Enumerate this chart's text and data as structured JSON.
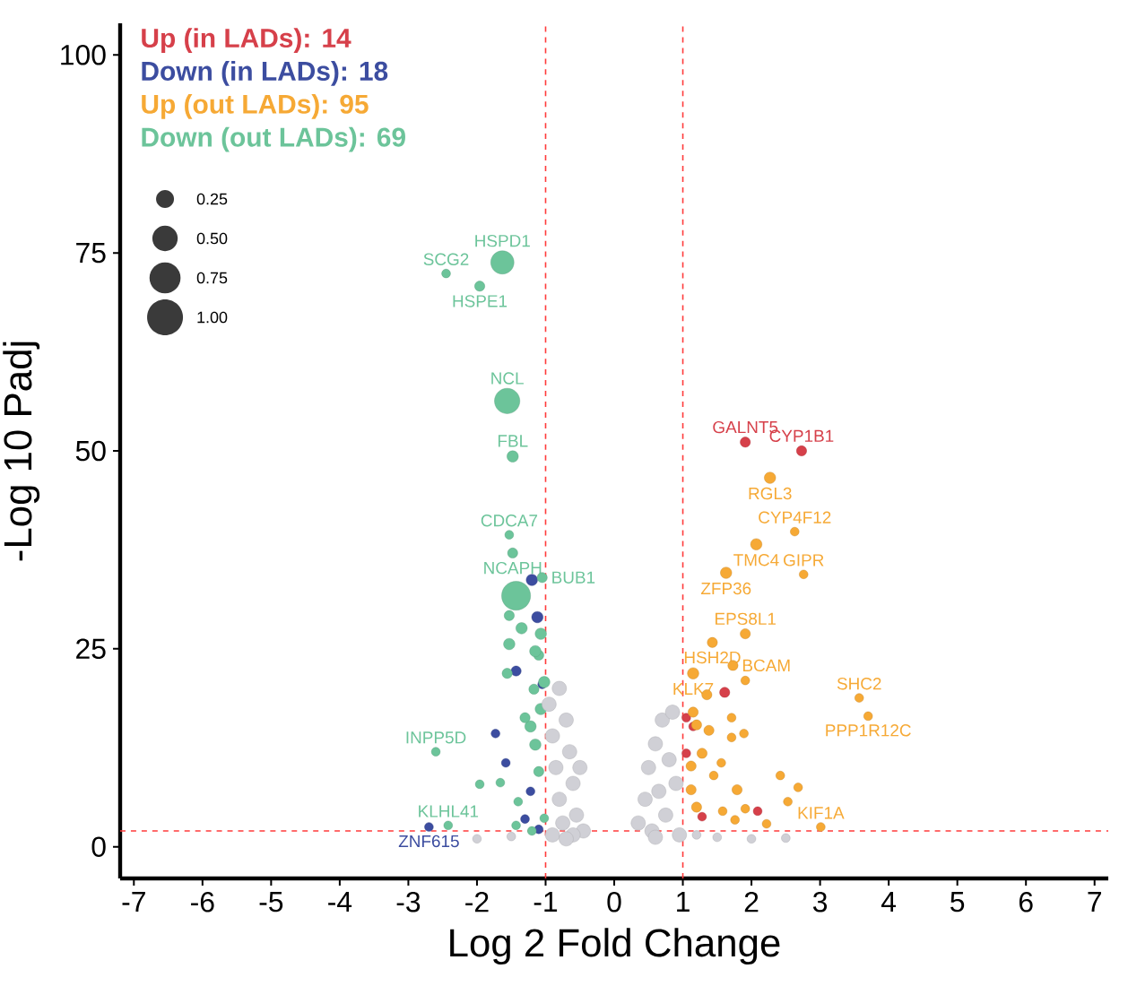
{
  "chart_data": {
    "type": "bubble",
    "xlabel": "Log 2 Fold Change",
    "ylabel": "-Log 10 Padj",
    "xlim": [
      -7.2,
      7.2
    ],
    "ylim": [
      -4,
      104
    ],
    "xticks": [
      -7,
      -6,
      -5,
      -4,
      -3,
      -2,
      -1,
      0,
      1,
      2,
      3,
      4,
      5,
      6,
      7
    ],
    "yticks": [
      0,
      25,
      50,
      75,
      100
    ],
    "legend": "top left",
    "marker": "circle",
    "size_legend": [
      {
        "value": 0.25,
        "label": "0.25"
      },
      {
        "value": 0.5,
        "label": "0.50"
      },
      {
        "value": 0.75,
        "label": "0.75"
      },
      {
        "value": 1.0,
        "label": "1.00"
      }
    ],
    "series": [
      {
        "name": "Up (in LADs): 14",
        "color": "#d6404a",
        "x": [
          1.91,
          2.73,
          1.61,
          2.09,
          1.05,
          1.15,
          1.28,
          1.05
        ],
        "values": [
          51.1,
          50.0,
          19.5,
          4.5,
          11.8,
          15.2,
          3.8,
          16.3
        ],
        "sizes": [
          0.08,
          0.08,
          0.08,
          0.06,
          0.06,
          0.06,
          0.06,
          0.06
        ]
      },
      {
        "name": "Down (in LADs): 18",
        "color": "#3c4da0",
        "x": [
          -1.2,
          -1.12,
          -1.43,
          -1.73,
          -1.58,
          -2.7,
          -1.22,
          -1.3,
          -1.1,
          -1.05
        ],
        "values": [
          33.7,
          29.0,
          22.2,
          14.3,
          10.6,
          2.5,
          7.0,
          3.5,
          2.2,
          20.5
        ],
        "sizes": [
          0.1,
          0.1,
          0.08,
          0.06,
          0.06,
          0.06,
          0.06,
          0.06,
          0.06,
          0.06
        ]
      },
      {
        "name": "Up (out LADs): 95",
        "color": "#f6a935",
        "x": [
          2.27,
          2.63,
          2.07,
          1.63,
          2.76,
          1.91,
          1.43,
          1.73,
          1.15,
          3.57,
          3.7,
          1.91,
          1.35,
          1.71,
          1.71,
          1.89,
          1.2,
          1.28,
          1.56,
          1.45,
          2.42,
          2.68,
          2.53,
          1.79,
          1.91,
          1.58,
          3.01,
          1.76,
          1.38,
          1.15,
          1.12,
          1.12,
          1.2,
          2.22
        ],
        "values": [
          46.6,
          39.8,
          38.2,
          34.6,
          34.4,
          26.9,
          25.8,
          22.9,
          21.9,
          18.8,
          16.5,
          21.0,
          19.2,
          16.3,
          13.8,
          14.3,
          15.4,
          11.8,
          10.6,
          9.0,
          9.0,
          7.5,
          5.7,
          7.2,
          4.8,
          4.5,
          2.5,
          3.4,
          14.7,
          17.0,
          10.2,
          7.2,
          5.0,
          2.9
        ],
        "sizes": [
          0.1,
          0.06,
          0.1,
          0.1,
          0.06,
          0.08,
          0.08,
          0.08,
          0.1,
          0.06,
          0.06,
          0.06,
          0.08,
          0.06,
          0.06,
          0.06,
          0.08,
          0.08,
          0.06,
          0.06,
          0.06,
          0.06,
          0.06,
          0.08,
          0.06,
          0.06,
          0.06,
          0.06,
          0.08,
          0.08,
          0.08,
          0.08,
          0.08,
          0.06
        ]
      },
      {
        "name": "Down (out LADs): 69",
        "color": "#6cc49a",
        "x": [
          -2.45,
          -1.63,
          -1.96,
          -1.56,
          -1.48,
          -1.53,
          -1.48,
          -1.43,
          -1.05,
          -1.53,
          -1.35,
          -1.07,
          -1.53,
          -1.1,
          -1.56,
          -1.15,
          -1.17,
          -2.6,
          -1.66,
          -1.96,
          -1.4,
          -2.42,
          -1.43,
          -1.2,
          -1.02,
          -1.07,
          -1.22,
          -1.15,
          -1.02,
          -1.3,
          -1.1
        ],
        "values": [
          72.4,
          73.8,
          70.8,
          56.3,
          49.3,
          39.4,
          37.1,
          31.7,
          34.0,
          29.2,
          27.6,
          26.9,
          25.6,
          24.2,
          21.9,
          24.7,
          19.9,
          12.0,
          8.1,
          7.9,
          5.7,
          2.7,
          2.7,
          2.0,
          3.6,
          17.4,
          15.2,
          12.9,
          20.8,
          16.3,
          9.5
        ],
        "sizes": [
          0.06,
          0.42,
          0.08,
          0.5,
          0.1,
          0.06,
          0.08,
          0.65,
          0.08,
          0.08,
          0.1,
          0.1,
          0.1,
          0.08,
          0.08,
          0.1,
          0.08,
          0.06,
          0.06,
          0.06,
          0.06,
          0.06,
          0.06,
          0.06,
          0.06,
          0.1,
          0.1,
          0.1,
          0.1,
          0.08,
          0.08
        ]
      },
      {
        "color": "#d0d0d6",
        "x": [
          -0.95,
          -0.9,
          -0.85,
          -0.8,
          -0.75,
          -0.7,
          -0.65,
          -0.6,
          -0.55,
          -0.5,
          -0.45,
          -0.9,
          -0.6,
          -0.8,
          -0.7,
          0.35,
          0.45,
          0.5,
          0.55,
          0.6,
          0.65,
          0.7,
          0.75,
          0.8,
          0.85,
          0.9,
          0.95,
          0.6,
          1.5,
          2.0,
          2.5,
          -2.0,
          -1.5,
          1.2
        ],
        "values": [
          18,
          14,
          10,
          6,
          3,
          16,
          12,
          8,
          4,
          10,
          2,
          1.5,
          1.5,
          20,
          1,
          3,
          6,
          10,
          2,
          13,
          7,
          16,
          4,
          11,
          17,
          8,
          1.5,
          1.2,
          1.2,
          1.0,
          1.1,
          1.0,
          1.3,
          1.5
        ],
        "sizes": [
          0.16,
          0.16,
          0.16,
          0.16,
          0.16,
          0.16,
          0.16,
          0.16,
          0.16,
          0.16,
          0.16,
          0.16,
          0.16,
          0.16,
          0.16,
          0.16,
          0.16,
          0.16,
          0.16,
          0.16,
          0.16,
          0.16,
          0.16,
          0.16,
          0.16,
          0.16,
          0.16,
          0.16,
          0.06,
          0.06,
          0.06,
          0.06,
          0.06,
          0.06
        ]
      }
    ],
    "ref_lines": [
      {
        "axis": "x",
        "value": -1,
        "color": "#ff3b3b",
        "line_style": "dashed"
      },
      {
        "axis": "x",
        "value": 1,
        "color": "#ff3b3b",
        "line_style": "dashed"
      },
      {
        "axis": "y",
        "value": 2,
        "color": "#ff3b3b",
        "line_style": "dashed"
      }
    ],
    "annotations": [
      {
        "text": "SCG2",
        "x": -2.45,
        "y": 72.4
      },
      {
        "text": "HSPD1",
        "x": -1.63,
        "y": 73.8
      },
      {
        "text": "HSPE1",
        "x": -1.96,
        "y": 70.8
      },
      {
        "text": "NCL",
        "x": -1.56,
        "y": 56.3
      },
      {
        "text": "FBL",
        "x": -1.48,
        "y": 49.3
      },
      {
        "text": "CDCA7",
        "x": -1.53,
        "y": 39.4
      },
      {
        "text": "NCAPH",
        "x": -1.48,
        "y": 37.1
      },
      {
        "text": "BUB1",
        "x": -1.05,
        "y": 34.0
      },
      {
        "text": "INPP5D",
        "x": -2.6,
        "y": 12.0
      },
      {
        "text": "KLHL41",
        "x": -2.42,
        "y": 2.7
      },
      {
        "text": "ZNF615",
        "x": -2.7,
        "y": 2.5
      },
      {
        "text": "GALNT5",
        "x": 1.91,
        "y": 51.1
      },
      {
        "text": "CYP1B1",
        "x": 2.73,
        "y": 50.0
      },
      {
        "text": "RGL3",
        "x": 2.27,
        "y": 46.6
      },
      {
        "text": "CYP4F12",
        "x": 2.63,
        "y": 39.8
      },
      {
        "text": "TMC4",
        "x": 2.07,
        "y": 38.2
      },
      {
        "text": "ZFP36",
        "x": 1.63,
        "y": 34.6
      },
      {
        "text": "GIPR",
        "x": 2.76,
        "y": 34.4
      },
      {
        "text": "EPS8L1",
        "x": 1.91,
        "y": 26.9
      },
      {
        "text": "HSH2D",
        "x": 1.43,
        "y": 25.8
      },
      {
        "text": "BCAM",
        "x": 1.73,
        "y": 22.9
      },
      {
        "text": "KLK7",
        "x": 1.15,
        "y": 21.9
      },
      {
        "text": "SHC2",
        "x": 3.57,
        "y": 18.8
      },
      {
        "text": "PPP1R12C",
        "x": 3.7,
        "y": 16.5
      },
      {
        "text": "KIF1A",
        "x": 3.01,
        "y": 2.5
      }
    ]
  }
}
